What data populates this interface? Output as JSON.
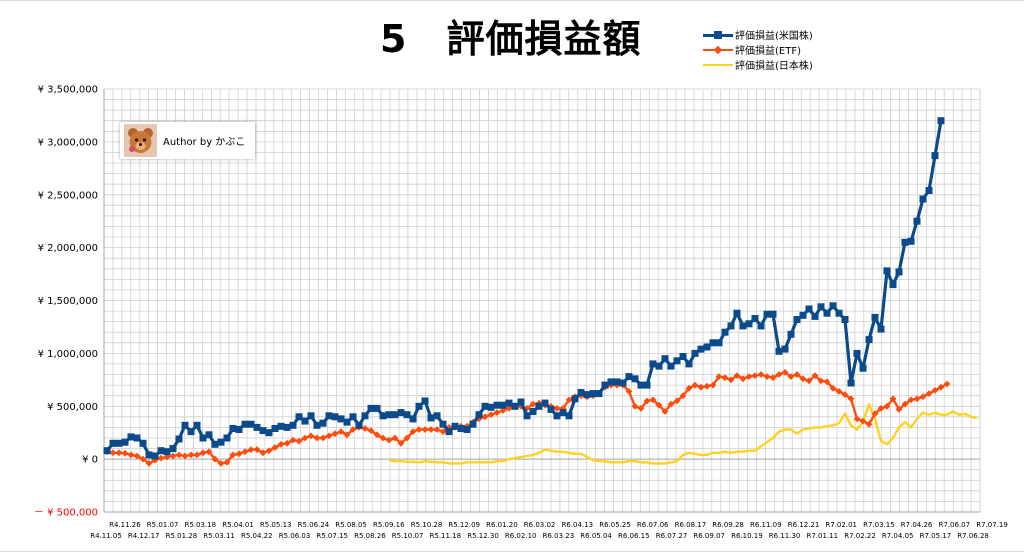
{
  "title": "5　評価損益額",
  "author": {
    "label": "Author by かぶこ"
  },
  "colors": {
    "us_stock": "#0b4a8b",
    "etf": "#ff4d0d",
    "jp_stock": "#ffd21f",
    "grid": "#cfcfcf",
    "axis": "#a6a6a6",
    "negative_label": "#ff0000"
  },
  "chart_data": {
    "type": "line",
    "title": "5　評価損益額",
    "xlabel": "",
    "ylabel": "",
    "ylim": [
      -500000,
      3500000
    ],
    "y_ticks": [
      3500000,
      3000000,
      2500000,
      2000000,
      1500000,
      1000000,
      500000,
      0,
      -500000
    ],
    "y_tick_labels": [
      "¥ 3,500,000",
      "¥ 3,000,000",
      "¥ 2,500,000",
      "¥ 2,000,000",
      "¥ 1,500,000",
      "¥ 1,000,000",
      "¥ 500,000",
      "¥ 0",
      "－ ¥ 500,000"
    ],
    "x_tick_labels_upper": [
      "R4.11.26",
      "R5.01.07",
      "R5.03.18",
      "R5.04.01",
      "R5.05.13",
      "R5.06.24",
      "R5.08.05",
      "R5.09.16",
      "R5.10.28",
      "R5.12.09",
      "R6.01.20",
      "R6.03.02",
      "R6.04.13",
      "R6.05.25",
      "R6.07.06",
      "R6.08.17",
      "R6.09.28",
      "R6.11.09",
      "R6.12.21",
      "R7.02.01",
      "R7.03.15",
      "R7.04.26",
      "R7.06.07",
      "R7.07.19"
    ],
    "x_tick_labels_lower": [
      "R4.11.05",
      "R4.12.17",
      "R5.01.28",
      "R5.03.11",
      "R5.04.22",
      "R5.06.03",
      "R5.07.15",
      "R5.08.26",
      "R5.10.07",
      "R5.11.18",
      "R5.12.30",
      "R6.02.10",
      "R6.03.23",
      "R6.05.04",
      "R6.06.15",
      "R6.07.27",
      "R6.09.07",
      "R6.10.19",
      "R6.11.30",
      "R7.01.11",
      "R7.02.22",
      "R7.04.05",
      "R7.05.17",
      "R7.06.28"
    ],
    "legend_position": "top-right",
    "grid": true,
    "series": [
      {
        "name": "評価損益(米国株)",
        "color_key": "us_stock",
        "marker": "square",
        "start_index": 0,
        "values": [
          80000,
          150000,
          150000,
          160000,
          210000,
          200000,
          150000,
          40000,
          30000,
          80000,
          70000,
          100000,
          190000,
          320000,
          260000,
          320000,
          200000,
          230000,
          140000,
          160000,
          200000,
          290000,
          280000,
          330000,
          330000,
          300000,
          270000,
          250000,
          290000,
          310000,
          300000,
          320000,
          400000,
          360000,
          410000,
          320000,
          340000,
          410000,
          400000,
          380000,
          350000,
          400000,
          320000,
          410000,
          480000,
          480000,
          410000,
          420000,
          420000,
          440000,
          420000,
          380000,
          500000,
          550000,
          390000,
          410000,
          330000,
          260000,
          310000,
          290000,
          280000,
          330000,
          420000,
          500000,
          490000,
          510000,
          510000,
          530000,
          500000,
          540000,
          410000,
          450000,
          500000,
          530000,
          470000,
          410000,
          440000,
          410000,
          570000,
          630000,
          610000,
          620000,
          620000,
          700000,
          730000,
          730000,
          720000,
          780000,
          760000,
          700000,
          700000,
          900000,
          880000,
          950000,
          880000,
          930000,
          970000,
          900000,
          1000000,
          1040000,
          1060000,
          1100000,
          1100000,
          1200000,
          1260000,
          1380000,
          1260000,
          1280000,
          1330000,
          1260000,
          1370000,
          1370000,
          1020000,
          1040000,
          1180000,
          1320000,
          1360000,
          1420000,
          1350000,
          1440000,
          1380000,
          1450000,
          1380000,
          1320000,
          720000,
          1000000,
          860000,
          1130000,
          1340000,
          1230000,
          1780000,
          1650000,
          1770000,
          2050000,
          2060000,
          2250000,
          2460000,
          2540000,
          2870000,
          3200000
        ]
      },
      {
        "name": "評価損益(ETF)",
        "color_key": "etf",
        "marker": "diamond",
        "start_index": 0,
        "values": [
          70000,
          60000,
          60000,
          55000,
          40000,
          30000,
          0,
          -40000,
          -10000,
          10000,
          20000,
          30000,
          40000,
          30000,
          40000,
          40000,
          60000,
          70000,
          0,
          -40000,
          -30000,
          40000,
          50000,
          70000,
          90000,
          90000,
          60000,
          80000,
          110000,
          140000,
          150000,
          180000,
          170000,
          200000,
          220000,
          200000,
          200000,
          220000,
          240000,
          260000,
          230000,
          280000,
          300000,
          290000,
          270000,
          230000,
          200000,
          180000,
          200000,
          150000,
          200000,
          260000,
          280000,
          280000,
          280000,
          280000,
          260000,
          300000,
          300000,
          310000,
          310000,
          350000,
          380000,
          400000,
          420000,
          440000,
          460000,
          480000,
          500000,
          500000,
          480000,
          520000,
          530000,
          510000,
          500000,
          480000,
          480000,
          560000,
          590000,
          600000,
          590000,
          600000,
          620000,
          680000,
          700000,
          700000,
          700000,
          640000,
          500000,
          480000,
          550000,
          560000,
          510000,
          450000,
          520000,
          550000,
          600000,
          670000,
          700000,
          680000,
          690000,
          700000,
          780000,
          770000,
          750000,
          790000,
          760000,
          780000,
          790000,
          800000,
          780000,
          770000,
          800000,
          820000,
          780000,
          800000,
          760000,
          740000,
          790000,
          740000,
          730000,
          670000,
          640000,
          610000,
          570000,
          380000,
          360000,
          330000,
          430000,
          480000,
          500000,
          570000,
          470000,
          520000,
          560000,
          570000,
          590000,
          620000,
          650000,
          680000,
          710000
        ]
      },
      {
        "name": "評価損益(日本株)",
        "color_key": "jp_stock",
        "marker": "none",
        "start_index": 47,
        "values": [
          -10000,
          -20000,
          -20000,
          -25000,
          -25000,
          -30000,
          -20000,
          -25000,
          -30000,
          -30000,
          -40000,
          -40000,
          -40000,
          -30000,
          -30000,
          -30000,
          -30000,
          -30000,
          -20000,
          -20000,
          0,
          10000,
          20000,
          30000,
          40000,
          60000,
          90000,
          80000,
          70000,
          70000,
          60000,
          50000,
          50000,
          20000,
          -10000,
          -20000,
          -20000,
          -30000,
          -30000,
          -30000,
          -20000,
          -20000,
          -30000,
          -30000,
          -40000,
          -40000,
          -40000,
          -30000,
          -20000,
          40000,
          60000,
          50000,
          40000,
          40000,
          60000,
          60000,
          70000,
          60000,
          70000,
          70000,
          80000,
          80000,
          120000,
          160000,
          200000,
          260000,
          280000,
          280000,
          240000,
          280000,
          290000,
          300000,
          300000,
          310000,
          320000,
          340000,
          430000,
          320000,
          280000,
          350000,
          520000,
          380000,
          170000,
          140000,
          200000,
          300000,
          350000,
          300000,
          380000,
          440000,
          420000,
          440000,
          420000,
          420000,
          450000,
          420000,
          430000,
          400000,
          390000
        ]
      }
    ]
  }
}
